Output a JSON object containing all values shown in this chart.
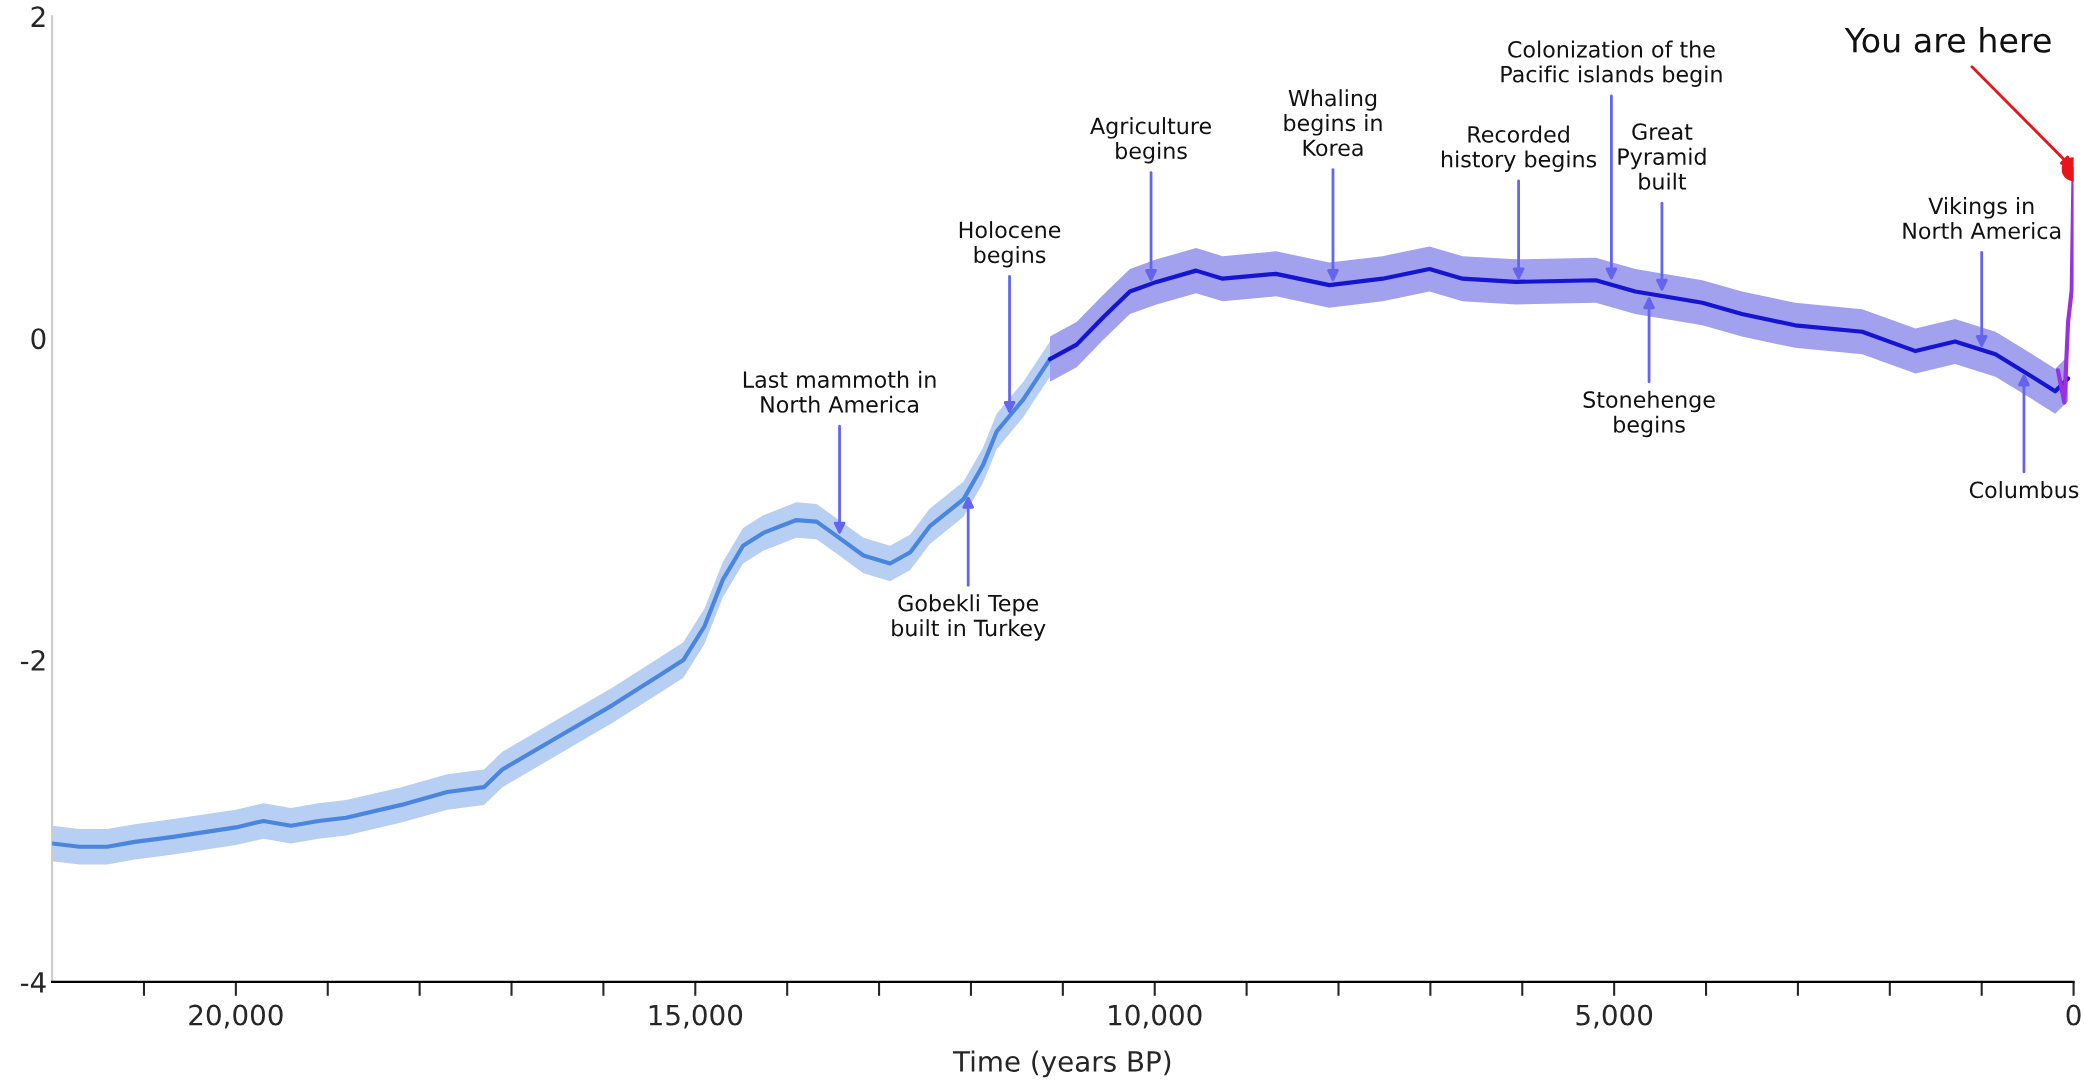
{
  "chart_data": {
    "type": "line",
    "xlabel": "Time (years BP)",
    "xlim": [
      22000,
      0
    ],
    "ylim": [
      -4,
      2
    ],
    "xticks": [
      {
        "value": 21000,
        "label": null
      },
      {
        "value": 20000,
        "label": "20,000"
      },
      {
        "value": 19000,
        "label": null
      },
      {
        "value": 18000,
        "label": null
      },
      {
        "value": 17000,
        "label": null
      },
      {
        "value": 16000,
        "label": null
      },
      {
        "value": 15000,
        "label": "15,000"
      },
      {
        "value": 14000,
        "label": null
      },
      {
        "value": 13000,
        "label": null
      },
      {
        "value": 12000,
        "label": null
      },
      {
        "value": 11000,
        "label": null
      },
      {
        "value": 10000,
        "label": "10,000"
      },
      {
        "value": 9000,
        "label": null
      },
      {
        "value": 8000,
        "label": null
      },
      {
        "value": 7000,
        "label": null
      },
      {
        "value": 6000,
        "label": null
      },
      {
        "value": 5000,
        "label": "5,000"
      },
      {
        "value": 4000,
        "label": null
      },
      {
        "value": 3000,
        "label": null
      },
      {
        "value": 2000,
        "label": null
      },
      {
        "value": 1000,
        "label": null
      },
      0
    ],
    "yticks": [
      -4,
      -2,
      0,
      2
    ],
    "grid": false,
    "series": [
      {
        "color": "#4a86e0",
        "x": [
          22000,
          21700,
          21400,
          21100,
          20700,
          20000,
          19700,
          19400,
          19100,
          18800,
          18200,
          17700,
          17300,
          17100,
          16500,
          15900,
          15350,
          15130,
          14900,
          14700,
          14480,
          14260,
          13900,
          13680,
          13460,
          13170,
          12880,
          12660,
          12450,
          12080,
          11870,
          11720,
          11430,
          11140
        ],
        "values": [
          -3.14,
          -3.16,
          -3.16,
          -3.13,
          -3.1,
          -3.04,
          -3.0,
          -3.03,
          -3.0,
          -2.98,
          -2.9,
          -2.82,
          -2.79,
          -2.68,
          -2.48,
          -2.28,
          -2.08,
          -2.0,
          -1.79,
          -1.5,
          -1.29,
          -1.21,
          -1.13,
          -1.14,
          -1.23,
          -1.35,
          -1.4,
          -1.33,
          -1.17,
          -1.0,
          -0.79,
          -0.58,
          -0.38,
          -0.13
        ],
        "lower": [
          -3.25,
          -3.27,
          -3.27,
          -3.24,
          -3.21,
          -3.15,
          -3.11,
          -3.14,
          -3.11,
          -3.09,
          -3.01,
          -2.93,
          -2.9,
          -2.79,
          -2.59,
          -2.39,
          -2.19,
          -2.11,
          -1.9,
          -1.61,
          -1.4,
          -1.32,
          -1.24,
          -1.25,
          -1.34,
          -1.46,
          -1.51,
          -1.44,
          -1.28,
          -1.11,
          -0.9,
          -0.69,
          -0.49,
          -0.24
        ],
        "upper": [
          -3.03,
          -3.05,
          -3.05,
          -3.02,
          -2.99,
          -2.93,
          -2.89,
          -2.92,
          -2.89,
          -2.87,
          -2.79,
          -2.71,
          -2.68,
          -2.57,
          -2.37,
          -2.17,
          -1.97,
          -1.89,
          -1.68,
          -1.39,
          -1.18,
          -1.1,
          -1.02,
          -1.03,
          -1.12,
          -1.24,
          -1.29,
          -1.22,
          -1.06,
          -0.89,
          -0.68,
          -0.47,
          -0.27,
          -0.02
        ]
      },
      {
        "color": "#1414d2",
        "x": [
          11140,
          10850,
          10560,
          10270,
          9980,
          9550,
          9260,
          8680,
          8100,
          7520,
          7010,
          6650,
          6070,
          5200,
          4770,
          4040,
          3610,
          3030,
          2300,
          1720,
          1290,
          850,
          420,
          200,
          60
        ],
        "values": [
          -0.13,
          -0.04,
          0.13,
          0.29,
          0.35,
          0.42,
          0.37,
          0.4,
          0.33,
          0.37,
          0.43,
          0.37,
          0.35,
          0.36,
          0.29,
          0.22,
          0.15,
          0.08,
          0.04,
          -0.08,
          -0.02,
          -0.1,
          -0.25,
          -0.33,
          -0.25
        ],
        "lower": [
          -0.27,
          -0.18,
          -0.01,
          0.15,
          0.21,
          0.28,
          0.23,
          0.26,
          0.19,
          0.23,
          0.29,
          0.23,
          0.21,
          0.22,
          0.15,
          0.08,
          0.01,
          -0.06,
          -0.1,
          -0.22,
          -0.16,
          -0.24,
          -0.39,
          -0.47,
          -0.39
        ],
        "upper": [
          0.01,
          0.1,
          0.27,
          0.43,
          0.49,
          0.56,
          0.51,
          0.54,
          0.47,
          0.51,
          0.57,
          0.51,
          0.49,
          0.5,
          0.43,
          0.36,
          0.29,
          0.22,
          0.18,
          0.06,
          0.12,
          0.04,
          -0.11,
          -0.19,
          -0.11
        ]
      },
      {
        "color": "#9b30e0",
        "x": [
          170,
          100,
          60,
          20,
          0
        ],
        "values": [
          -0.2,
          -0.4,
          0.1,
          0.3,
          1.05
        ]
      },
      {
        "type": "scatter",
        "color": "#e8141c",
        "marker": "circle",
        "x": [
          0
        ],
        "values": [
          1.05
        ]
      }
    ],
    "annotations": [
      {
        "text": "Last mammoth in\nNorth America",
        "x": 13430,
        "y": -1.23
      },
      {
        "text": "Holocene\nbegins",
        "x": 11580,
        "y": -0.48
      },
      {
        "text": "Gobekli Tepe\nbuilt in Turkey",
        "x": 12030,
        "y": -0.97
      },
      {
        "text": "Agriculture\nbegins",
        "x": 10040,
        "y": 0.34
      },
      {
        "text": "Whaling\nbegins in\nKorea",
        "x": 8060,
        "y": 0.34
      },
      {
        "text": "Recorded\nhistory begins",
        "x": 6040,
        "y": 0.35
      },
      {
        "text": "Colonization of the\nPacific islands begin",
        "x": 5030,
        "y": 0.35
      },
      {
        "text": "Great\nPyramid\nbuilt",
        "x": 4480,
        "y": 0.28
      },
      {
        "text": "Stonehenge\nbegins",
        "x": 4620,
        "y": 0.27
      },
      {
        "text": "Vikings in\nNorth America",
        "x": 1000,
        "y": -0.07
      },
      {
        "text": "Columbus",
        "x": 540,
        "y": -0.21
      },
      {
        "text": "You are here",
        "x": 0,
        "y": 1.05
      }
    ]
  }
}
